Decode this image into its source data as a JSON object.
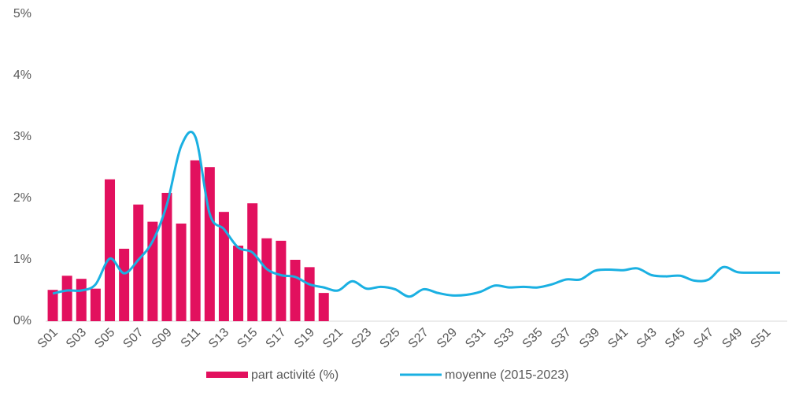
{
  "chart_data": {
    "type": "bar-line",
    "categories": [
      "S01",
      null,
      "S03",
      null,
      "S05",
      null,
      "S07",
      null,
      "S09",
      null,
      "S11",
      null,
      "S13",
      null,
      "S15",
      null,
      "S17",
      null,
      "S19",
      null,
      "S21",
      null,
      "S23",
      null,
      "S25",
      null,
      "S27",
      null,
      "S29",
      null,
      "S31",
      null,
      "S33",
      null,
      "S35",
      null,
      "S37",
      null,
      "S39",
      null,
      "S41",
      null,
      "S43",
      null,
      "S45",
      null,
      "S47",
      null,
      "S49",
      null,
      "S51",
      null
    ],
    "series": [
      {
        "name": "part activité (%)",
        "type": "bar",
        "color": "#e2105e",
        "values": [
          0.51,
          0.74,
          0.69,
          0.53,
          2.31,
          1.18,
          1.9,
          1.62,
          2.09,
          1.59,
          2.62,
          2.51,
          1.78,
          1.23,
          1.92,
          1.35,
          1.31,
          1.0,
          0.88,
          0.46,
          null,
          null,
          null,
          null,
          null,
          null,
          null,
          null,
          null,
          null,
          null,
          null,
          null,
          null,
          null,
          null,
          null,
          null,
          null,
          null,
          null,
          null,
          null,
          null,
          null,
          null,
          null,
          null,
          null,
          null,
          null,
          null
        ]
      },
      {
        "name": "moyenne (2015-2023)",
        "type": "line",
        "color": "#1ab0e2",
        "values": [
          0.45,
          0.5,
          0.5,
          0.6,
          1.02,
          0.78,
          1.0,
          1.3,
          1.9,
          2.85,
          3.0,
          1.75,
          1.5,
          1.2,
          1.12,
          0.85,
          0.75,
          0.72,
          0.6,
          0.55,
          0.5,
          0.65,
          0.53,
          0.56,
          0.52,
          0.4,
          0.52,
          0.46,
          0.42,
          0.43,
          0.48,
          0.58,
          0.55,
          0.56,
          0.55,
          0.6,
          0.68,
          0.68,
          0.82,
          0.84,
          0.83,
          0.86,
          0.75,
          0.73,
          0.74,
          0.66,
          0.68,
          0.88,
          0.8,
          0.79,
          0.79,
          0.79
        ]
      }
    ],
    "ylim": [
      0,
      5
    ],
    "yticks": [
      {
        "value": 0,
        "label": "0%"
      },
      {
        "value": 1,
        "label": "1%"
      },
      {
        "value": 2,
        "label": "2%"
      },
      {
        "value": 3,
        "label": "3%"
      },
      {
        "value": 4,
        "label": "4%"
      },
      {
        "value": 5,
        "label": "5%"
      }
    ],
    "grid": false,
    "legend": "bottom"
  }
}
